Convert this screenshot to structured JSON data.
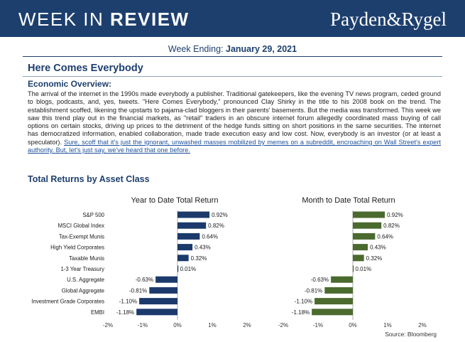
{
  "header": {
    "title_regular": "WEEK IN",
    "title_bold": "REVIEW",
    "logo": "Payden&Rygel"
  },
  "week": {
    "label": "Week Ending:",
    "date": "January 29, 2021"
  },
  "headline": "Here Comes Everybody",
  "overview": {
    "label": "Economic Overview:",
    "text": "The arrival of the internet in the 1990s made everybody a publisher. Traditional gatekeepers, like the evening TV news program, ceded ground to blogs, podcasts, and, yes, tweets. \"Here Comes Everybody,\" pronounced Clay Shirky in the title to his 2008 book on the trend. The establishment scoffed, likening the upstarts to pajama-clad bloggers in their parents' basements. But the media was transformed. This week we saw this trend play out in the financial markets, as \"retail\" traders in an obscure internet forum allegedly coordinated mass buying of call options on certain stocks, driving up prices to the detriment of the hedge funds sitting on short positions in the same securities. The internet has democratized information, enabled collaboration, made trade execution easy and low cost. Now, everybody is an investor (or at least a speculator).",
    "link_text": "Sure, scoff that it's just the ignorant, unwashed masses mobilized by memes on a subreddit, encroaching on Wall Street's expert authority. But, let's just say, we've heard that one before."
  },
  "returns_title": "Total Returns by Asset Class",
  "source": "Source: Bloomberg",
  "colors": {
    "navy": "#1d3f6e",
    "ytd_bar": "#1b3a6b",
    "mtd_bar": "#4b6a2e"
  },
  "chart_data": [
    {
      "type": "bar",
      "orientation": "horizontal",
      "title": "Year to Date Total Return",
      "categories": [
        "S&P 500",
        "MSCI Global Index",
        "Tax-Exempt Munis",
        "High Yield Corporates",
        "Taxable Munis",
        "1-3 Year Treasury",
        "U.S. Aggregate",
        "Global Aggregate",
        "Investment Grade Corporates",
        "EMBI"
      ],
      "values": [
        0.92,
        0.82,
        0.64,
        0.43,
        0.32,
        0.01,
        -0.63,
        -0.81,
        -1.1,
        -1.18
      ],
      "value_labels": [
        "0.92%",
        "0.82%",
        "0.64%",
        "0.43%",
        "0.32%",
        "0.01%",
        "-0.63%",
        "-0.81%",
        "-1.10%",
        "-1.18%"
      ],
      "xlim": [
        -2,
        2
      ],
      "xticks": [
        "-2%",
        "-1%",
        "0%",
        "1%",
        "2%"
      ]
    },
    {
      "type": "bar",
      "orientation": "horizontal",
      "title": "Month to Date Total Return",
      "categories": [
        "S&P 500",
        "MSCI Global Index",
        "Tax-Exempt Munis",
        "High Yield Corporates",
        "Taxable Munis",
        "1-3 Year Treasury",
        "U.S. Aggregate",
        "Global Aggregate",
        "Investment Grade Corporates",
        "EMBI"
      ],
      "values": [
        0.92,
        0.82,
        0.64,
        0.43,
        0.32,
        0.01,
        -0.63,
        -0.81,
        -1.1,
        -1.18
      ],
      "value_labels": [
        "0.92%",
        "0.82%",
        "0.64%",
        "0.43%",
        "0.32%",
        "0.01%",
        "-0.63%",
        "-0.81%",
        "-1.10%",
        "-1.18%"
      ],
      "xlim": [
        -2,
        2
      ],
      "xticks": [
        "-2%",
        "-1%",
        "0%",
        "1%",
        "2%"
      ]
    }
  ]
}
